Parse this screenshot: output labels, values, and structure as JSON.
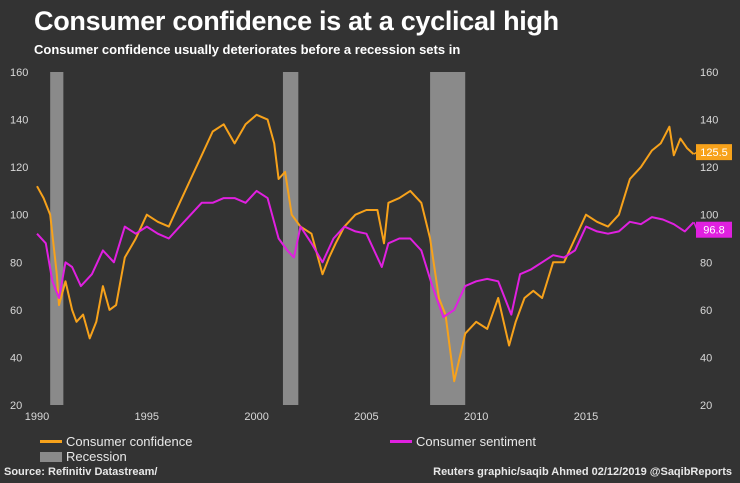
{
  "title": "Consumer confidence is at a cyclical high",
  "subtitle": "Consumer confidence usually deteriorates before a recession sets in",
  "source": "Source: Refinitiv Datastream/",
  "credit": "Reuters graphic/saqib Ahmed 02/12/2019 @SaqibReports",
  "chart_data": {
    "type": "line",
    "xlim": [
      1990,
      2020
    ],
    "ylim_left": [
      20,
      160
    ],
    "ylim_right": [
      20,
      160
    ],
    "x_ticks": [
      "1990",
      "1995",
      "2000",
      "2005",
      "2010",
      "2015"
    ],
    "y_ticks_left": [
      "20",
      "40",
      "60",
      "80",
      "100",
      "120",
      "140",
      "160"
    ],
    "y_ticks_right": [
      "20",
      "40",
      "60",
      "80",
      "100",
      "120",
      "140",
      "160"
    ],
    "grid": false,
    "legend_placement": "bottom",
    "recessions": [
      [
        1990.6,
        1991.2
      ],
      [
        2001.2,
        2001.9
      ],
      [
        2007.9,
        2009.5
      ]
    ],
    "recession_label": "Recession",
    "recession_color": "#8a8a8a",
    "series": [
      {
        "name": "Consumer confidence",
        "color": "#f7a21b",
        "end_label": "125.5",
        "x": [
          1990.0,
          1990.3,
          1990.6,
          1990.9,
          1991.0,
          1991.3,
          1991.6,
          1991.8,
          1992.1,
          1992.4,
          1992.7,
          1993.0,
          1993.3,
          1993.6,
          1994.0,
          1994.5,
          1995.0,
          1995.5,
          1996.0,
          1996.5,
          1997.0,
          1997.5,
          1998.0,
          1998.5,
          1999.0,
          1999.5,
          2000.0,
          2000.5,
          2000.8,
          2001.0,
          2001.3,
          2001.6,
          2002.0,
          2002.5,
          2003.0,
          2003.3,
          2003.6,
          2004.0,
          2004.5,
          2005.0,
          2005.5,
          2005.8,
          2006.0,
          2006.5,
          2007.0,
          2007.5,
          2007.9,
          2008.3,
          2008.6,
          2009.0,
          2009.2,
          2009.5,
          2010.0,
          2010.5,
          2011.0,
          2011.5,
          2011.8,
          2012.2,
          2012.6,
          2013.0,
          2013.5,
          2014.0,
          2014.5,
          2015.0,
          2015.5,
          2016.0,
          2016.5,
          2017.0,
          2017.5,
          2018.0,
          2018.4,
          2018.8,
          2019.0,
          2019.3,
          2019.6,
          2019.9
        ],
        "values": [
          112,
          107,
          100,
          75,
          62,
          72,
          60,
          55,
          58,
          48,
          55,
          70,
          60,
          62,
          82,
          90,
          100,
          97,
          95,
          105,
          115,
          125,
          135,
          138,
          130,
          138,
          142,
          140,
          130,
          115,
          118,
          100,
          95,
          92,
          75,
          82,
          88,
          95,
          100,
          102,
          102,
          88,
          105,
          107,
          110,
          105,
          90,
          65,
          58,
          30,
          38,
          50,
          55,
          52,
          65,
          45,
          55,
          65,
          68,
          65,
          80,
          80,
          90,
          100,
          97,
          95,
          100,
          115,
          120,
          127,
          130,
          137,
          125,
          132,
          128,
          125.5
        ]
      },
      {
        "name": "Consumer sentiment",
        "color": "#e020e0",
        "end_label": "96.8",
        "x": [
          1990.0,
          1990.4,
          1990.7,
          1991.0,
          1991.3,
          1991.6,
          1992.0,
          1992.5,
          1993.0,
          1993.5,
          1994.0,
          1994.5,
          1995.0,
          1995.5,
          1996.0,
          1996.5,
          1997.0,
          1997.5,
          1998.0,
          1998.5,
          1999.0,
          1999.5,
          2000.0,
          2000.5,
          2001.0,
          2001.4,
          2001.7,
          2002.0,
          2002.5,
          2003.0,
          2003.5,
          2004.0,
          2004.5,
          2005.0,
          2005.7,
          2006.0,
          2006.5,
          2007.0,
          2007.5,
          2008.0,
          2008.5,
          2009.0,
          2009.5,
          2010.0,
          2010.5,
          2011.0,
          2011.6,
          2012.0,
          2012.5,
          2013.0,
          2013.5,
          2014.0,
          2014.5,
          2015.0,
          2015.5,
          2016.0,
          2016.5,
          2017.0,
          2017.5,
          2018.0,
          2018.5,
          2019.0,
          2019.5,
          2019.9
        ],
        "values": [
          92,
          88,
          72,
          65,
          80,
          78,
          70,
          75,
          85,
          80,
          95,
          92,
          95,
          92,
          90,
          95,
          100,
          105,
          105,
          107,
          107,
          105,
          110,
          107,
          90,
          85,
          82,
          95,
          88,
          80,
          90,
          95,
          93,
          92,
          78,
          88,
          90,
          90,
          85,
          70,
          57,
          60,
          70,
          72,
          73,
          72,
          58,
          75,
          77,
          80,
          83,
          82,
          85,
          95,
          93,
          92,
          93,
          97,
          96,
          99,
          98,
          96,
          93,
          96.8
        ]
      }
    ]
  }
}
